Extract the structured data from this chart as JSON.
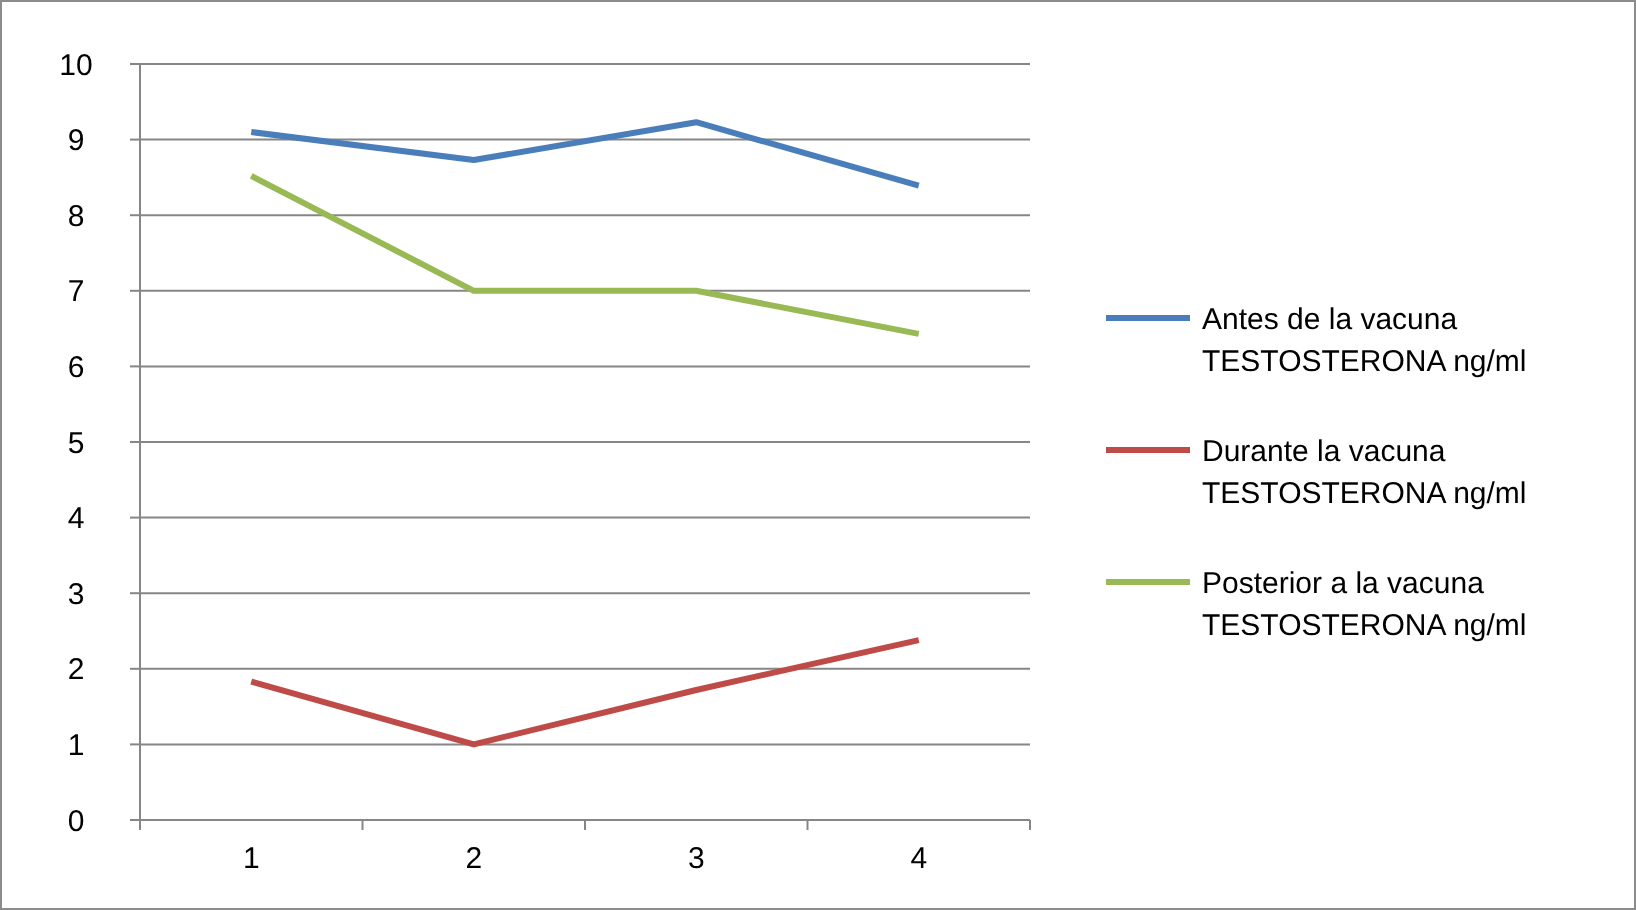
{
  "chart_data": {
    "type": "line",
    "categories": [
      "1",
      "2",
      "3",
      "4"
    ],
    "series": [
      {
        "name": "Antes de la vacuna TESTOSTERONA ng/ml",
        "color": "#4a7ebb",
        "values": [
          9.1,
          8.73,
          9.23,
          8.39
        ]
      },
      {
        "name": "Durante la vacuna TESTOSTERONA ng/ml",
        "color": "#be4b48",
        "values": [
          1.83,
          1.0,
          1.72,
          2.38
        ]
      },
      {
        "name": "Posterior a la vacuna TESTOSTERONA ng/ml",
        "color": "#98b954",
        "values": [
          8.52,
          7.0,
          7.0,
          6.43
        ]
      }
    ],
    "ylim": [
      0,
      10
    ],
    "yticks": [
      0,
      1,
      2,
      3,
      4,
      5,
      6,
      7,
      8,
      9,
      10
    ],
    "grid": "y",
    "legend": "right",
    "marker": "none",
    "line_style": "solid"
  }
}
